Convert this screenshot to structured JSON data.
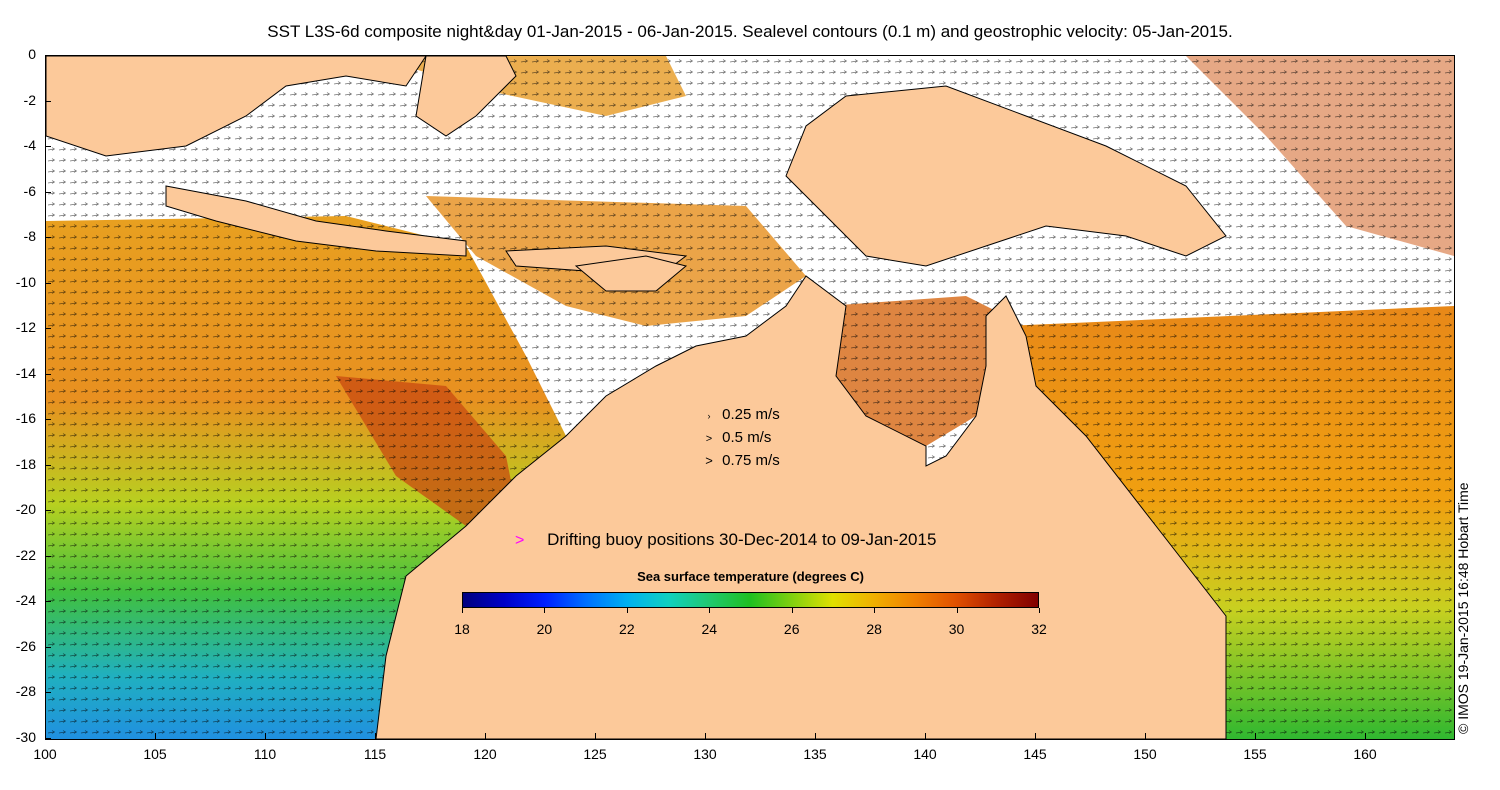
{
  "title": "SST L3S-6d composite night&day 01-Jan-2015 - 06-Jan-2015. Sealevel contours (0.1 m) and geostrophic velocity: 05-Jan-2015.",
  "side_label": "© IMOS 19-Jan-2015 16:48 Hobart Time",
  "axes": {
    "x_ticks": [
      "100",
      "105",
      "110",
      "115",
      "120",
      "125",
      "130",
      "135",
      "140",
      "145",
      "150",
      "155",
      "160"
    ],
    "y_ticks": [
      "0",
      "-2",
      "-4",
      "-6",
      "-8",
      "-10",
      "-12",
      "-14",
      "-16",
      "-18",
      "-20",
      "-22",
      "-24",
      "-26",
      "-28",
      "-30"
    ],
    "lon_range": [
      100,
      164
    ],
    "lat_range": [
      -30,
      0
    ]
  },
  "velocity_scale": {
    "entries": [
      {
        "label": "0.25 m/s",
        "arrow": "›"
      },
      {
        "label": "0.5 m/s",
        "arrow": ">"
      },
      {
        "label": "0.75 m/s",
        "arrow": ">"
      }
    ]
  },
  "buoy_legend": {
    "marker": ">",
    "label": "Drifting buoy positions 30-Dec-2014 to 09-Jan-2015",
    "color": "#ff00ff"
  },
  "colorbar": {
    "title": "Sea surface temperature (degrees C)",
    "ticks": [
      "18",
      "20",
      "22",
      "24",
      "26",
      "28",
      "30",
      "32"
    ],
    "range": [
      18,
      32
    ]
  },
  "colors": {
    "land": "#fcc99a",
    "cloud": "#ffffff",
    "sst_cool": "#1e88e6",
    "sst_mid": "#20c020",
    "sst_warm": "#f0a000",
    "sst_hot": "#c04000"
  }
}
